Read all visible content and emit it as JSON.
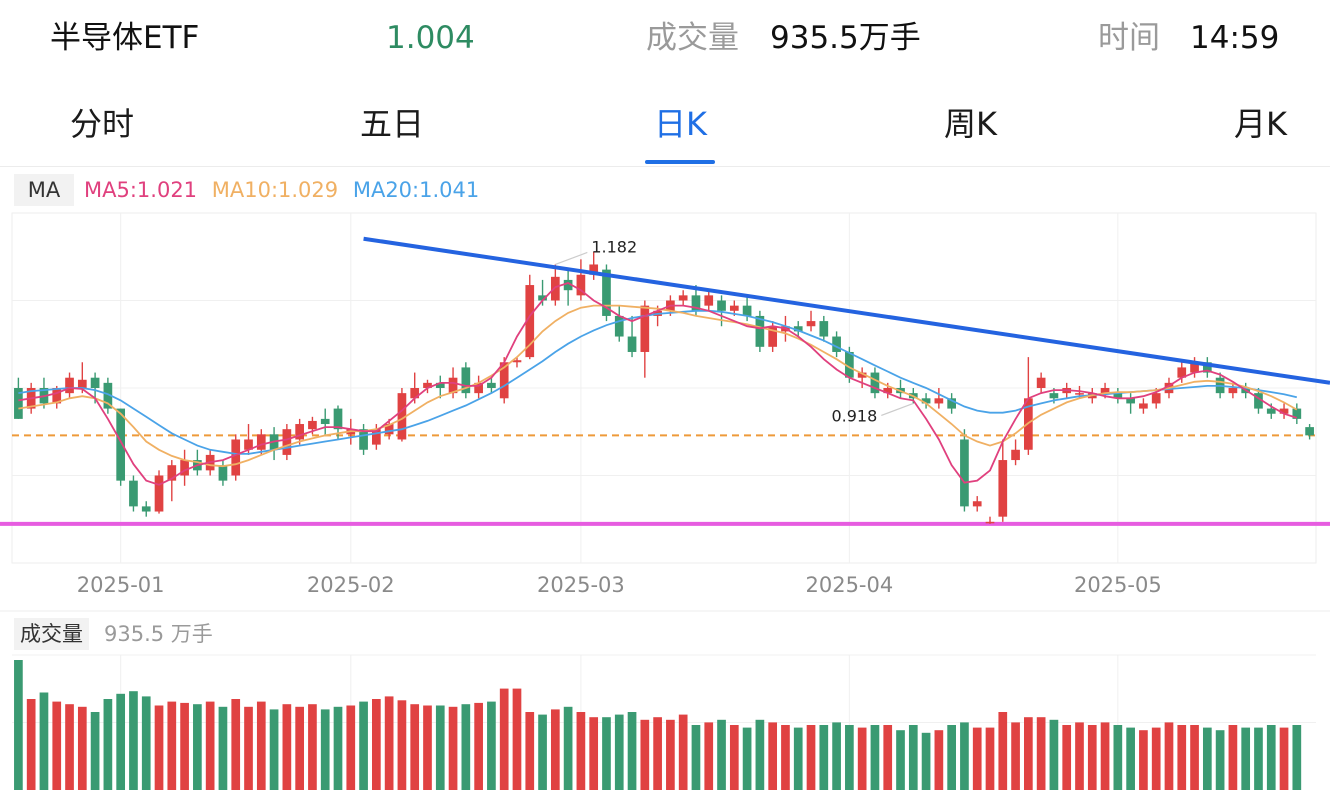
{
  "header": {
    "name": "半导体ETF",
    "price": "1.004",
    "volume_label": "成交量",
    "volume_value": "935.5万手",
    "time_label": "时间",
    "time_value": "14:59"
  },
  "tabs": [
    {
      "label": "分时"
    },
    {
      "label": "五日"
    },
    {
      "label": "日K",
      "active": true
    },
    {
      "label": "周K"
    },
    {
      "label": "月K"
    }
  ],
  "ma_legend": {
    "tag": "MA",
    "ma5": "MA5:1.021",
    "ma10": "MA10:1.029",
    "ma20": "MA20:1.041"
  },
  "volume_legend": {
    "tag": "成交量",
    "value": "935.5 万手"
  },
  "colors": {
    "up": "#e04242",
    "down": "#3a9a72",
    "ma5": "#e0407e",
    "ma10": "#f0b063",
    "ma20": "#4aa3e8",
    "trendline": "#2463e0",
    "support": "#e65ce0",
    "reference": "#ee9a3a",
    "active_tab": "#1f6fe5"
  },
  "chart_data": {
    "type": "candlestick",
    "y_range": [
      0.88,
      1.22
    ],
    "x_labels": [
      "2025-01",
      "2025-02",
      "2025-03",
      "2025-04",
      "2025-05"
    ],
    "x_label_positions": [
      8,
      26,
      44,
      65,
      86
    ],
    "annotations": {
      "high": "1.182",
      "high_index": 42,
      "low": "0.918",
      "low_index": 70
    },
    "reference_level": 1.004,
    "support_level": 0.918,
    "trendline": {
      "start_index": 27,
      "start_value": 1.195,
      "end_index": 101,
      "end_value": 1.058
    },
    "candles": [
      [
        1.05,
        1.02,
        1.06,
        1.02
      ],
      [
        1.03,
        1.05,
        1.055,
        1.025
      ],
      [
        1.05,
        1.035,
        1.06,
        1.03
      ],
      [
        1.035,
        1.05,
        1.052,
        1.03
      ],
      [
        1.045,
        1.06,
        1.065,
        1.04
      ],
      [
        1.05,
        1.058,
        1.075,
        1.045
      ],
      [
        1.06,
        1.05,
        1.065,
        1.035
      ],
      [
        1.055,
        1.03,
        1.06,
        1.025
      ],
      [
        1.03,
        0.96,
        1.03,
        0.955
      ],
      [
        0.96,
        0.935,
        0.965,
        0.93
      ],
      [
        0.935,
        0.93,
        0.94,
        0.925
      ],
      [
        0.93,
        0.965,
        0.97,
        0.928
      ],
      [
        0.96,
        0.975,
        0.98,
        0.94
      ],
      [
        0.965,
        0.98,
        0.99,
        0.955
      ],
      [
        0.98,
        0.97,
        0.99,
        0.965
      ],
      [
        0.97,
        0.985,
        0.99,
        0.965
      ],
      [
        0.975,
        0.96,
        0.98,
        0.955
      ],
      [
        0.965,
        1.0,
        1.005,
        0.96
      ],
      [
        0.99,
        1.0,
        1.015,
        0.985
      ],
      [
        0.99,
        1.005,
        1.01,
        0.985
      ],
      [
        1.005,
        0.99,
        1.012,
        0.98
      ],
      [
        0.985,
        1.01,
        1.015,
        0.98
      ],
      [
        1.0,
        1.015,
        1.02,
        0.995
      ],
      [
        1.01,
        1.018,
        1.022,
        1.005
      ],
      [
        1.02,
        1.015,
        1.03,
        1.005
      ],
      [
        1.03,
        1.01,
        1.033,
        1.0
      ],
      [
        1.005,
        1.01,
        1.02,
        0.995
      ],
      [
        1.01,
        0.99,
        1.015,
        0.985
      ],
      [
        0.995,
        1.01,
        1.015,
        0.99
      ],
      [
        1.005,
        1.015,
        1.02,
        1.0
      ],
      [
        1.0,
        1.045,
        1.05,
        0.998
      ],
      [
        1.04,
        1.05,
        1.065,
        1.035
      ],
      [
        1.05,
        1.055,
        1.058,
        1.045
      ],
      [
        1.055,
        1.05,
        1.062,
        1.04
      ],
      [
        1.045,
        1.06,
        1.07,
        1.04
      ],
      [
        1.07,
        1.045,
        1.075,
        1.04
      ],
      [
        1.045,
        1.055,
        1.062,
        1.04
      ],
      [
        1.055,
        1.05,
        1.06,
        1.045
      ],
      [
        1.04,
        1.075,
        1.08,
        1.035
      ],
      [
        1.075,
        1.077,
        1.08,
        1.07
      ],
      [
        1.08,
        1.15,
        1.16,
        1.078
      ],
      [
        1.14,
        1.135,
        1.155,
        1.13
      ],
      [
        1.135,
        1.158,
        1.17,
        1.13
      ],
      [
        1.155,
        1.145,
        1.165,
        1.13
      ],
      [
        1.14,
        1.16,
        1.175,
        1.135
      ],
      [
        1.16,
        1.17,
        1.182,
        1.155
      ],
      [
        1.165,
        1.12,
        1.17,
        1.115
      ],
      [
        1.12,
        1.1,
        1.13,
        1.095
      ],
      [
        1.1,
        1.085,
        1.12,
        1.08
      ],
      [
        1.085,
        1.13,
        1.135,
        1.06
      ],
      [
        1.12,
        1.125,
        1.13,
        1.11
      ],
      [
        1.125,
        1.135,
        1.14,
        1.12
      ],
      [
        1.135,
        1.14,
        1.145,
        1.13
      ],
      [
        1.14,
        1.125,
        1.15,
        1.12
      ],
      [
        1.13,
        1.14,
        1.145,
        1.125
      ],
      [
        1.135,
        1.125,
        1.14,
        1.11
      ],
      [
        1.125,
        1.13,
        1.135,
        1.12
      ],
      [
        1.13,
        1.12,
        1.14,
        1.115
      ],
      [
        1.12,
        1.09,
        1.125,
        1.085
      ],
      [
        1.09,
        1.11,
        1.115,
        1.085
      ],
      [
        1.105,
        1.11,
        1.12,
        1.095
      ],
      [
        1.11,
        1.105,
        1.115,
        1.1
      ],
      [
        1.11,
        1.115,
        1.125,
        1.105
      ],
      [
        1.115,
        1.1,
        1.12,
        1.095
      ],
      [
        1.1,
        1.085,
        1.105,
        1.08
      ],
      [
        1.085,
        1.06,
        1.09,
        1.055
      ],
      [
        1.06,
        1.065,
        1.07,
        1.05
      ],
      [
        1.065,
        1.045,
        1.07,
        1.04
      ],
      [
        1.045,
        1.05,
        1.055,
        1.04
      ],
      [
        1.05,
        1.045,
        1.058,
        1.04
      ],
      [
        1.045,
        1.04,
        1.05,
        1.035
      ],
      [
        1.04,
        1.035,
        1.045,
        1.03
      ],
      [
        1.035,
        1.04,
        1.05,
        1.03
      ],
      [
        1.04,
        1.03,
        1.045,
        1.025
      ],
      [
        1.0,
        0.935,
        1.01,
        0.93
      ],
      [
        0.935,
        0.94,
        0.945,
        0.93
      ],
      [
        0.92,
        0.92,
        0.925,
        0.918
      ],
      [
        0.925,
        0.98,
        1.0,
        0.92
      ],
      [
        0.98,
        0.99,
        1.0,
        0.975
      ],
      [
        0.99,
        1.04,
        1.08,
        0.985
      ],
      [
        1.05,
        1.06,
        1.065,
        1.045
      ],
      [
        1.045,
        1.04,
        1.05,
        1.035
      ],
      [
        1.045,
        1.05,
        1.055,
        1.04
      ],
      [
        1.045,
        1.045,
        1.052,
        1.04
      ],
      [
        1.04,
        1.045,
        1.05,
        1.035
      ],
      [
        1.045,
        1.05,
        1.055,
        1.04
      ],
      [
        1.045,
        1.04,
        1.05,
        1.035
      ],
      [
        1.04,
        1.035,
        1.045,
        1.025
      ],
      [
        1.03,
        1.035,
        1.04,
        1.025
      ],
      [
        1.035,
        1.045,
        1.05,
        1.03
      ],
      [
        1.045,
        1.055,
        1.06,
        1.04
      ],
      [
        1.06,
        1.07,
        1.075,
        1.055
      ],
      [
        1.065,
        1.075,
        1.08,
        1.06
      ],
      [
        1.075,
        1.065,
        1.08,
        1.06
      ],
      [
        1.06,
        1.045,
        1.065,
        1.04
      ],
      [
        1.045,
        1.05,
        1.055,
        1.04
      ],
      [
        1.05,
        1.045,
        1.055,
        1.04
      ],
      [
        1.045,
        1.03,
        1.05,
        1.025
      ],
      [
        1.03,
        1.025,
        1.035,
        1.02
      ],
      [
        1.025,
        1.03,
        1.035,
        1.02
      ],
      [
        1.03,
        1.02,
        1.035,
        1.015
      ],
      [
        1.012,
        1.004,
        1.015,
        1.0
      ]
    ],
    "ma5": [
      1.038,
      1.04,
      1.042,
      1.045,
      1.05,
      1.049,
      1.04,
      1.02,
      0.998,
      0.976,
      0.96,
      0.956,
      0.962,
      0.97,
      0.975,
      0.978,
      0.98,
      0.985,
      0.99,
      0.995,
      0.998,
      1.0,
      1.004,
      1.008,
      1.012,
      1.012,
      1.01,
      1.008,
      1.008,
      1.018,
      1.028,
      1.04,
      1.05,
      1.055,
      1.055,
      1.052,
      1.052,
      1.06,
      1.075,
      1.1,
      1.12,
      1.135,
      1.148,
      1.152,
      1.145,
      1.135,
      1.128,
      1.12,
      1.115,
      1.12,
      1.125,
      1.13,
      1.13,
      1.128,
      1.125,
      1.12,
      1.115,
      1.11,
      1.108,
      1.11,
      1.108,
      1.1,
      1.09,
      1.078,
      1.068,
      1.06,
      1.055,
      1.05,
      1.045,
      1.04,
      1.038,
      1.02,
      1.0,
      0.975,
      0.958,
      0.96,
      0.97,
      0.998,
      1.02,
      1.04,
      1.045,
      1.048,
      1.048,
      1.047,
      1.045,
      1.042,
      1.04,
      1.04,
      1.042,
      1.046,
      1.052,
      1.06,
      1.065,
      1.067,
      1.063,
      1.056,
      1.048,
      1.04,
      1.032,
      1.025,
      1.021
    ],
    "ma10": [
      1.03,
      1.032,
      1.034,
      1.036,
      1.04,
      1.042,
      1.04,
      1.035,
      1.025,
      1.012,
      0.998,
      0.99,
      0.984,
      0.98,
      0.978,
      0.975,
      0.974,
      0.976,
      0.98,
      0.985,
      0.99,
      0.994,
      0.998,
      1.001,
      1.004,
      1.006,
      1.008,
      1.008,
      1.01,
      1.014,
      1.02,
      1.028,
      1.036,
      1.042,
      1.046,
      1.05,
      1.055,
      1.062,
      1.07,
      1.08,
      1.092,
      1.105,
      1.115,
      1.123,
      1.128,
      1.13,
      1.13,
      1.13,
      1.129,
      1.128,
      1.127,
      1.125,
      1.123,
      1.12,
      1.118,
      1.116,
      1.114,
      1.112,
      1.109,
      1.106,
      1.103,
      1.098,
      1.092,
      1.085,
      1.078,
      1.07,
      1.064,
      1.058,
      1.052,
      1.047,
      1.042,
      1.035,
      1.025,
      1.015,
      1.004,
      0.998,
      0.994,
      0.998,
      1.006,
      1.016,
      1.024,
      1.03,
      1.036,
      1.04,
      1.043,
      1.045,
      1.046,
      1.046,
      1.047,
      1.048,
      1.05,
      1.053,
      1.056,
      1.057,
      1.056,
      1.054,
      1.051,
      1.047,
      1.042,
      1.036,
      1.029
    ],
    "ma20": [
      1.045,
      1.047,
      1.048,
      1.049,
      1.05,
      1.05,
      1.048,
      1.044,
      1.038,
      1.03,
      1.022,
      1.014,
      1.006,
      1.0,
      0.994,
      0.99,
      0.988,
      0.986,
      0.986,
      0.988,
      0.99,
      0.992,
      0.994,
      0.996,
      0.998,
      1.0,
      1.002,
      1.004,
      1.006,
      1.008,
      1.01,
      1.014,
      1.018,
      1.023,
      1.028,
      1.033,
      1.039,
      1.045,
      1.052,
      1.06,
      1.068,
      1.076,
      1.085,
      1.093,
      1.1,
      1.106,
      1.111,
      1.115,
      1.118,
      1.12,
      1.122,
      1.123,
      1.124,
      1.125,
      1.125,
      1.124,
      1.122,
      1.12,
      1.117,
      1.114,
      1.11,
      1.106,
      1.101,
      1.096,
      1.09,
      1.084,
      1.078,
      1.072,
      1.066,
      1.06,
      1.055,
      1.05,
      1.044,
      1.038,
      1.032,
      1.028,
      1.026,
      1.026,
      1.028,
      1.032,
      1.035,
      1.038,
      1.04,
      1.042,
      1.043,
      1.044,
      1.045,
      1.046,
      1.047,
      1.048,
      1.049,
      1.05,
      1.051,
      1.052,
      1.052,
      1.051,
      1.05,
      1.048,
      1.046,
      1.044,
      1.041
    ],
    "volumes": [
      100,
      70,
      75,
      68,
      66,
      64,
      60,
      70,
      74,
      76,
      72,
      65,
      68,
      67,
      66,
      68,
      64,
      70,
      64,
      68,
      62,
      66,
      64,
      66,
      62,
      64,
      65,
      68,
      70,
      72,
      69,
      66,
      65,
      65,
      64,
      66,
      67,
      68,
      78,
      78,
      60,
      58,
      62,
      64,
      60,
      56,
      56,
      58,
      60,
      54,
      56,
      54,
      58,
      50,
      52,
      54,
      50,
      48,
      54,
      52,
      50,
      48,
      50,
      50,
      52,
      50,
      48,
      50,
      50,
      46,
      50,
      44,
      46,
      50,
      52,
      48,
      48,
      60,
      52,
      56,
      56,
      54,
      50,
      52,
      50,
      52,
      50,
      48,
      46,
      48,
      52,
      50,
      50,
      48,
      46,
      50,
      48,
      48,
      50,
      48,
      50
    ]
  }
}
